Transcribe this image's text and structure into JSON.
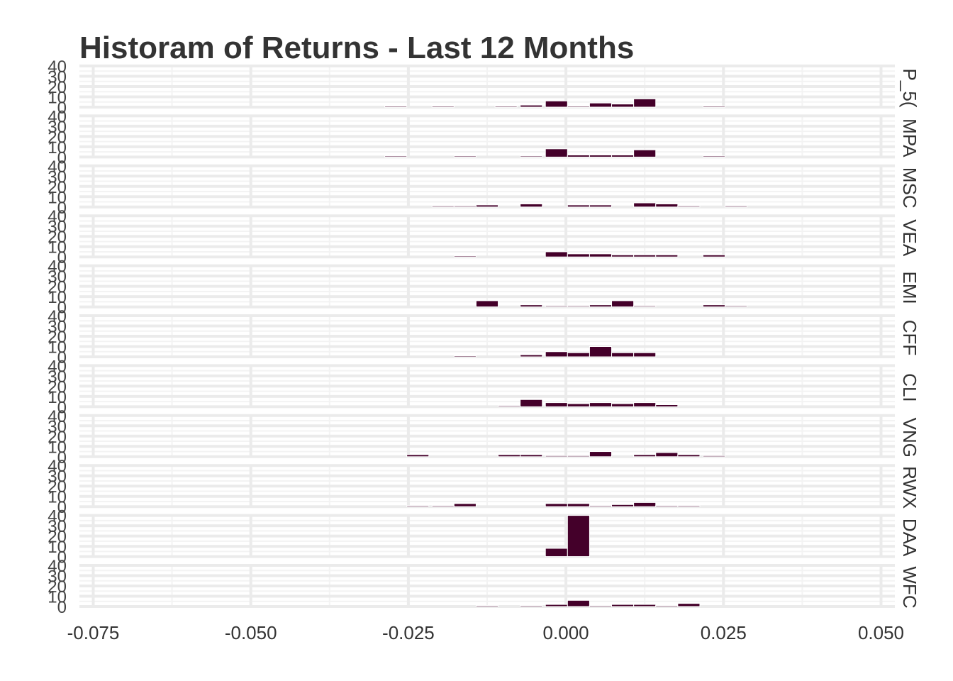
{
  "chart_data": {
    "type": "bar",
    "title": "Historam of Returns - Last 12 Months",
    "xlabel": "",
    "ylabel": "",
    "xlim": [
      -0.075,
      0.05
    ],
    "ylim": [
      0,
      40
    ],
    "x_ticks": [
      "-0.075",
      "-0.050",
      "-0.025",
      "0.000",
      "0.025",
      "0.050"
    ],
    "y_ticks": [
      "0",
      "10",
      "20",
      "30",
      "40"
    ],
    "bin_width": 0.0035,
    "legend": "none",
    "grid": true,
    "bar_color": "#44002a",
    "panels": [
      {
        "name": "P_5(",
        "bins": [
          [
            -0.027,
            1
          ],
          [
            -0.0195,
            1
          ],
          [
            -0.0095,
            1
          ],
          [
            -0.0055,
            2
          ],
          [
            -0.0015,
            6
          ],
          [
            0.002,
            1
          ],
          [
            0.0055,
            4
          ],
          [
            0.009,
            3
          ],
          [
            0.0125,
            8
          ],
          [
            0.0235,
            1
          ]
        ]
      },
      {
        "name": "MPA",
        "bins": [
          [
            -0.027,
            1
          ],
          [
            -0.016,
            1
          ],
          [
            -0.0055,
            1
          ],
          [
            -0.0015,
            8
          ],
          [
            0.002,
            2
          ],
          [
            0.0055,
            2
          ],
          [
            0.009,
            2
          ],
          [
            0.0125,
            7
          ],
          [
            0.0235,
            1
          ]
        ]
      },
      {
        "name": "MSC",
        "bins": [
          [
            -0.0195,
            1
          ],
          [
            -0.016,
            1
          ],
          [
            -0.0125,
            2
          ],
          [
            -0.0055,
            3
          ],
          [
            0.002,
            2
          ],
          [
            0.0055,
            2
          ],
          [
            0.0125,
            4
          ],
          [
            0.016,
            3
          ],
          [
            0.0195,
            1
          ],
          [
            0.027,
            1
          ]
        ]
      },
      {
        "name": "VEA",
        "bins": [
          [
            -0.016,
            1
          ],
          [
            -0.0015,
            5
          ],
          [
            0.002,
            3
          ],
          [
            0.0055,
            3
          ],
          [
            0.009,
            2
          ],
          [
            0.0125,
            2
          ],
          [
            0.016,
            2
          ],
          [
            0.0235,
            2
          ]
        ]
      },
      {
        "name": "EMI",
        "bins": [
          [
            -0.0125,
            6
          ],
          [
            -0.0055,
            2
          ],
          [
            -0.0015,
            1
          ],
          [
            0.002,
            1
          ],
          [
            0.0055,
            2
          ],
          [
            0.009,
            6
          ],
          [
            0.0125,
            1
          ],
          [
            0.0235,
            2
          ],
          [
            0.027,
            1
          ]
        ]
      },
      {
        "name": "CFF",
        "bins": [
          [
            -0.016,
            1
          ],
          [
            -0.0055,
            2
          ],
          [
            -0.0015,
            5
          ],
          [
            0.002,
            4
          ],
          [
            0.0055,
            10
          ],
          [
            0.009,
            4
          ],
          [
            0.0125,
            4
          ]
        ]
      },
      {
        "name": "CLI",
        "bins": [
          [
            -0.009,
            1
          ],
          [
            -0.0055,
            7
          ],
          [
            -0.0015,
            4
          ],
          [
            0.002,
            3
          ],
          [
            0.0055,
            4
          ],
          [
            0.009,
            3
          ],
          [
            0.0125,
            4
          ],
          [
            0.016,
            2
          ]
        ]
      },
      {
        "name": "VNG",
        "bins": [
          [
            -0.0235,
            2
          ],
          [
            -0.009,
            2
          ],
          [
            -0.0055,
            2
          ],
          [
            -0.0015,
            1
          ],
          [
            0.002,
            1
          ],
          [
            0.0055,
            5
          ],
          [
            0.0125,
            2
          ],
          [
            0.016,
            4
          ],
          [
            0.0195,
            2
          ],
          [
            0.0235,
            1
          ]
        ]
      },
      {
        "name": "RWX",
        "bins": [
          [
            -0.0235,
            1
          ],
          [
            -0.0195,
            1
          ],
          [
            -0.016,
            3
          ],
          [
            -0.0015,
            3
          ],
          [
            0.002,
            3
          ],
          [
            0.0055,
            1
          ],
          [
            0.009,
            2
          ],
          [
            0.0125,
            4
          ],
          [
            0.016,
            1
          ],
          [
            0.0195,
            1
          ]
        ]
      },
      {
        "name": "DAA",
        "bins": [
          [
            -0.0015,
            8
          ],
          [
            0.002,
            40
          ]
        ]
      },
      {
        "name": "WFC",
        "bins": [
          [
            -0.0125,
            1
          ],
          [
            -0.0055,
            1
          ],
          [
            -0.0015,
            2
          ],
          [
            0.002,
            6
          ],
          [
            0.0055,
            1
          ],
          [
            0.009,
            2
          ],
          [
            0.0125,
            2
          ],
          [
            0.016,
            1
          ],
          [
            0.0195,
            3
          ]
        ]
      }
    ]
  }
}
